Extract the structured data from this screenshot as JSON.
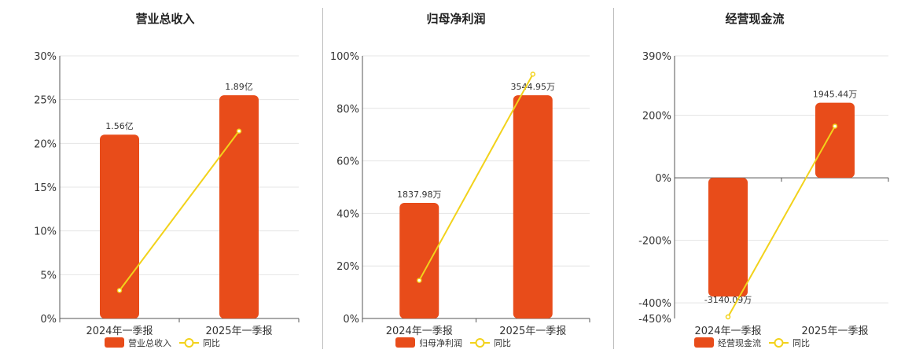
{
  "colors": {
    "bar": "#e84c1a",
    "line": "#f2d21b",
    "grid": "#e4e4e4",
    "axis": "#555555"
  },
  "chart_data": [
    {
      "type": "bar",
      "title": "营业总收入",
      "categories": [
        "2024年一季报",
        "2025年一季报"
      ],
      "series": [
        {
          "name": "营业总收入",
          "type": "bar",
          "display": [
            "1.56亿",
            "1.89亿"
          ],
          "values": [
            21,
            25.5
          ]
        },
        {
          "name": "同比",
          "type": "line",
          "values": [
            3.2,
            21.4
          ]
        }
      ],
      "ylim": [
        0,
        30
      ],
      "yticks": [
        {
          "v": 0,
          "label": "0%"
        },
        {
          "v": 5,
          "label": "5%"
        },
        {
          "v": 10,
          "label": "10%"
        },
        {
          "v": 15,
          "label": "15%"
        },
        {
          "v": 20,
          "label": "20%"
        },
        {
          "v": 25,
          "label": "25%"
        },
        {
          "v": 30,
          "label": "30%"
        }
      ],
      "grid": true,
      "legend": "bottom"
    },
    {
      "type": "bar",
      "title": "归母净利润",
      "categories": [
        "2024年一季报",
        "2025年一季报"
      ],
      "series": [
        {
          "name": "归母净利润",
          "type": "bar",
          "display": [
            "1837.98万",
            "3544.95万"
          ],
          "values": [
            44,
            85
          ]
        },
        {
          "name": "同比",
          "type": "line",
          "values": [
            14.5,
            93
          ]
        }
      ],
      "ylim": [
        0,
        100
      ],
      "yticks": [
        {
          "v": 0,
          "label": "0%"
        },
        {
          "v": 20,
          "label": "20%"
        },
        {
          "v": 40,
          "label": "40%"
        },
        {
          "v": 60,
          "label": "60%"
        },
        {
          "v": 80,
          "label": "80%"
        },
        {
          "v": 100,
          "label": "100%"
        }
      ],
      "grid": true,
      "legend": "bottom"
    },
    {
      "type": "bar",
      "title": "经营现金流",
      "categories": [
        "2024年一季报",
        "2025年一季报"
      ],
      "series": [
        {
          "name": "经营现金流",
          "type": "bar",
          "display": [
            "-3140.09万",
            "1945.44万"
          ],
          "values": [
            -380,
            240
          ]
        },
        {
          "name": "同比",
          "type": "line",
          "values": [
            -445,
            165
          ]
        }
      ],
      "ylim": [
        -450,
        390
      ],
      "yticks": [
        {
          "v": -450,
          "label": "-450%"
        },
        {
          "v": -400,
          "label": "-400%"
        },
        {
          "v": -200,
          "label": "-200%"
        },
        {
          "v": 0,
          "label": "0%"
        },
        {
          "v": 200,
          "label": "200%"
        },
        {
          "v": 390,
          "label": "390%"
        }
      ],
      "grid": true,
      "legend": "bottom"
    }
  ]
}
